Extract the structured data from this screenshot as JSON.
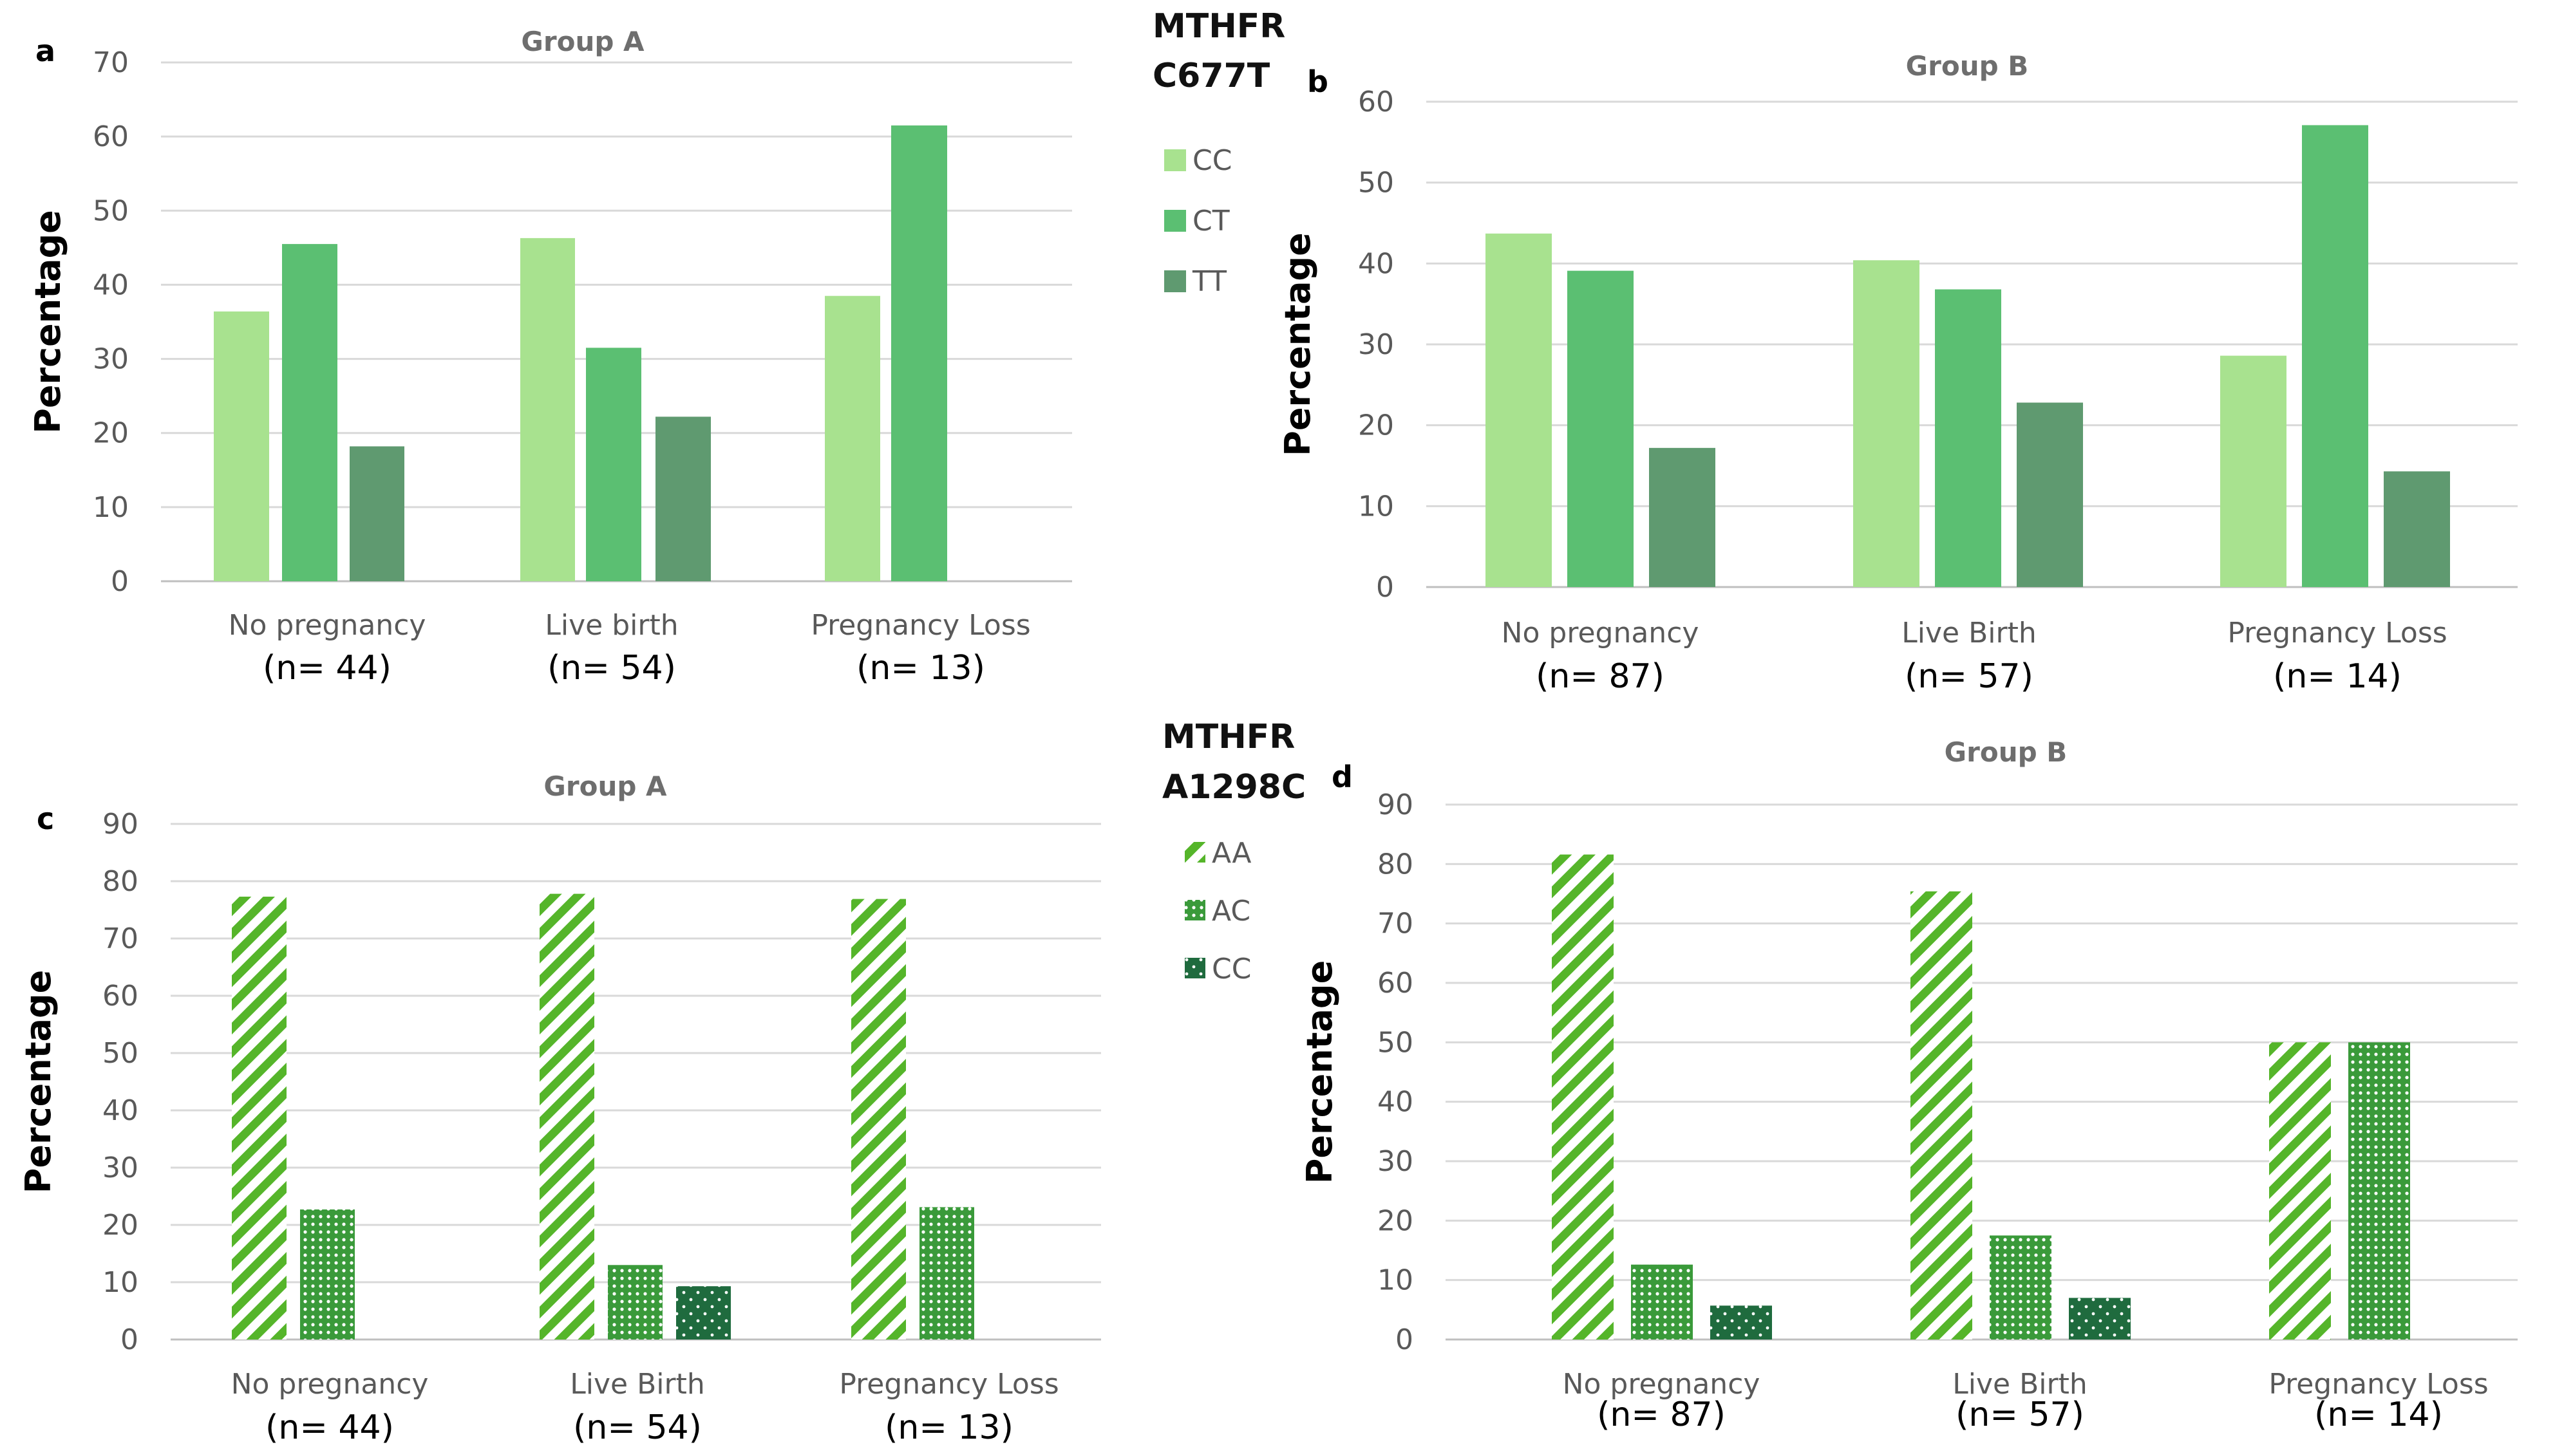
{
  "legend_top": {
    "title_line1": "MTHFR",
    "title_line2": "C677T",
    "items": [
      {
        "label": "CC",
        "color": "#a8e28f"
      },
      {
        "label": "CT",
        "color": "#5bbf72"
      },
      {
        "label": "TT",
        "color": "#5f9a70"
      }
    ]
  },
  "legend_bottom": {
    "title_line1": "MTHFR",
    "title_line2": "A1298C",
    "items": [
      {
        "label": "AA",
        "pattern": "hatch",
        "color": "#55b52a"
      },
      {
        "label": "AC",
        "pattern": "grid",
        "color": "#3a9a3a"
      },
      {
        "label": "CC",
        "pattern": "dots",
        "color": "#1f6b3e"
      }
    ]
  },
  "chart_data": [
    {
      "panel": "a",
      "type": "bar",
      "title": "Group A",
      "ylabel": "Percentage",
      "ylim": [
        0,
        70
      ],
      "ytick_step": 10,
      "categories": [
        "No pregnancy",
        "Live birth",
        "Pregnancy Loss"
      ],
      "counts": [
        "(n= 44)",
        "(n= 54)",
        "(n= 13)"
      ],
      "series": [
        {
          "name": "CC",
          "values": [
            36.4,
            46.3,
            38.5
          ]
        },
        {
          "name": "CT",
          "values": [
            45.5,
            31.5,
            61.5
          ]
        },
        {
          "name": "TT",
          "values": [
            18.2,
            22.2,
            0
          ]
        }
      ]
    },
    {
      "panel": "b",
      "type": "bar",
      "title": "Group B",
      "ylabel": "Percentage",
      "ylim": [
        0,
        60
      ],
      "ytick_step": 10,
      "categories": [
        "No pregnancy",
        "Live Birth",
        "Pregnancy Loss"
      ],
      "counts": [
        "(n= 87)",
        "(n= 57)",
        "(n= 14)"
      ],
      "series": [
        {
          "name": "CC",
          "values": [
            43.7,
            40.4,
            28.6
          ]
        },
        {
          "name": "CT",
          "values": [
            39.1,
            36.8,
            57.1
          ]
        },
        {
          "name": "TT",
          "values": [
            17.2,
            22.8,
            14.3
          ]
        }
      ]
    },
    {
      "panel": "c",
      "type": "bar",
      "title": "Group A",
      "ylabel": "Percentage",
      "ylim": [
        0,
        90
      ],
      "ytick_step": 10,
      "categories": [
        "No pregnancy",
        "Live Birth",
        "Pregnancy Loss"
      ],
      "counts": [
        "(n= 44)",
        "(n= 54)",
        "(n= 13)"
      ],
      "series": [
        {
          "name": "AA",
          "values": [
            77.3,
            77.8,
            76.9
          ]
        },
        {
          "name": "AC",
          "values": [
            22.7,
            13.0,
            23.1
          ]
        },
        {
          "name": "CC",
          "values": [
            0,
            9.3,
            0
          ]
        }
      ]
    },
    {
      "panel": "d",
      "type": "bar",
      "title": "Group B",
      "ylabel": "Percentage",
      "ylim": [
        0,
        90
      ],
      "ytick_step": 10,
      "categories": [
        "No pregnancy",
        "Live Birth",
        "Pregnancy Loss"
      ],
      "counts": [
        "(n= 87)",
        "(n= 57)",
        "(n= 14)"
      ],
      "series": [
        {
          "name": "AA",
          "values": [
            81.6,
            75.4,
            50.0
          ]
        },
        {
          "name": "AC",
          "values": [
            12.6,
            17.5,
            50.0
          ]
        },
        {
          "name": "CC",
          "values": [
            5.7,
            7.0,
            0
          ]
        }
      ]
    }
  ]
}
